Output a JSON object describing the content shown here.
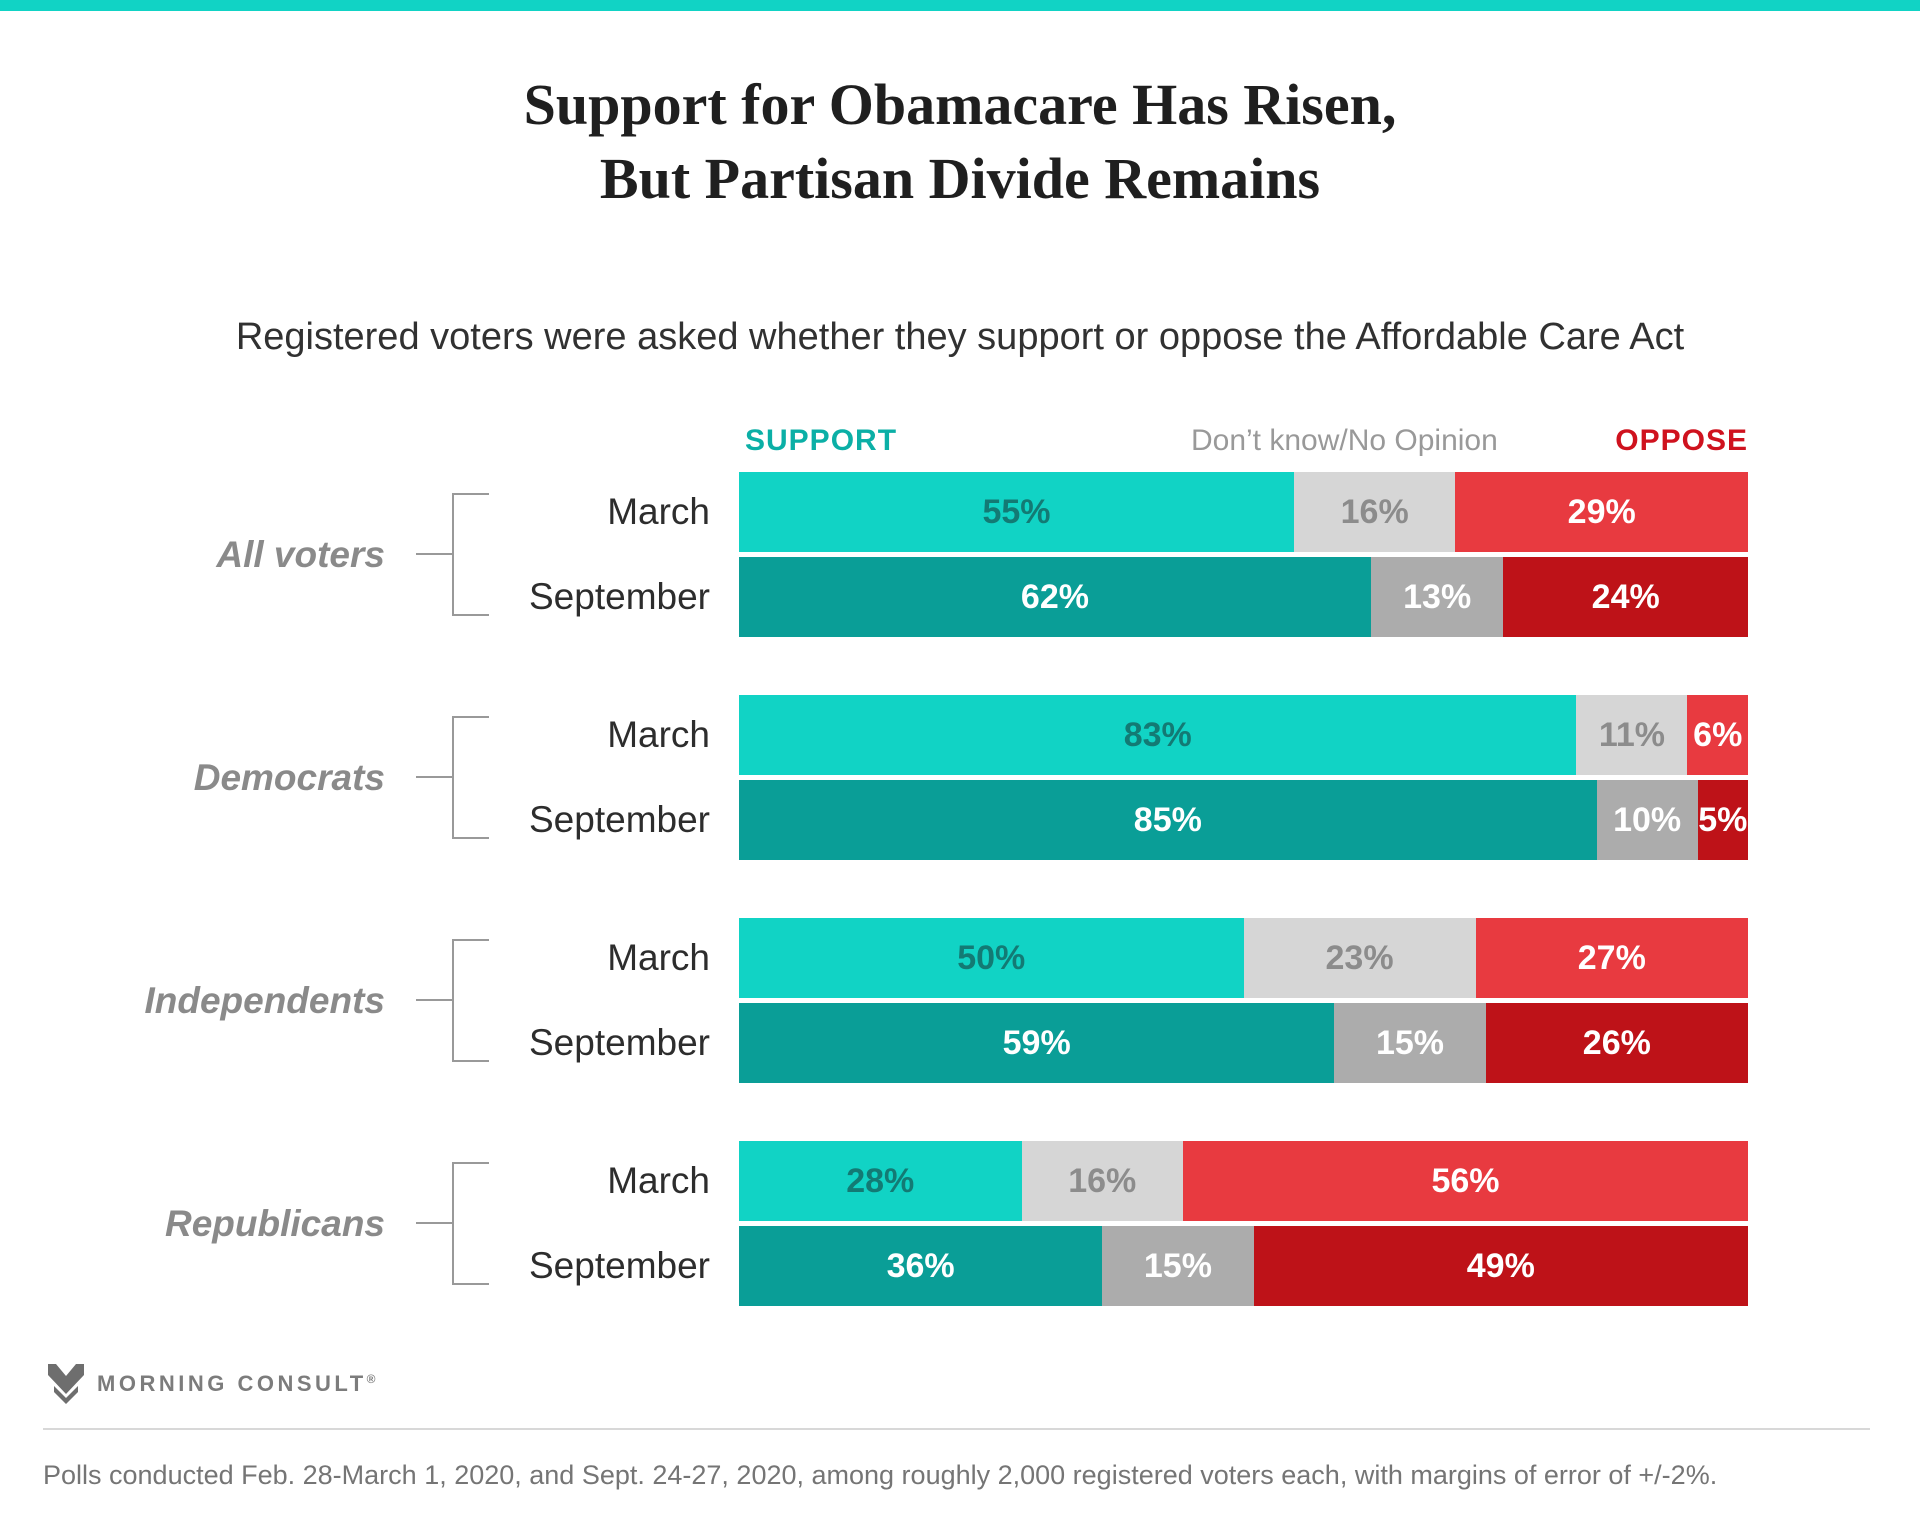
{
  "chart_data": {
    "type": "bar",
    "stacked": true,
    "orientation": "horizontal",
    "title": "Support for Obamacare Has Risen, But Partisan Divide Remains",
    "title_lines": [
      "Support for Obamacare Has Risen,",
      "But Partisan Divide Remains"
    ],
    "subtitle": "Registered voters were asked whether they support or oppose the Affordable Care Act",
    "unit": "%",
    "xlim": [
      0,
      100
    ],
    "legend_position": "top",
    "value_labels": "inside",
    "categories": [
      "Support",
      "Don’t know/No Opinion",
      "Oppose"
    ],
    "series_labels": {
      "support": "SUPPORT",
      "dont_know": "Don’t know/No Opinion",
      "oppose": "OPPOSE"
    },
    "groups": [
      {
        "label": "All voters",
        "rows": [
          {
            "period": "March",
            "values": [
              55,
              16,
              29
            ]
          },
          {
            "period": "September",
            "values": [
              62,
              13,
              24
            ]
          }
        ]
      },
      {
        "label": "Democrats",
        "rows": [
          {
            "period": "March",
            "values": [
              83,
              11,
              6
            ]
          },
          {
            "period": "September",
            "values": [
              85,
              10,
              5
            ]
          }
        ]
      },
      {
        "label": "Independents",
        "rows": [
          {
            "period": "March",
            "values": [
              50,
              23,
              27
            ]
          },
          {
            "period": "September",
            "values": [
              59,
              15,
              26
            ]
          }
        ]
      },
      {
        "label": "Republicans",
        "rows": [
          {
            "period": "March",
            "values": [
              28,
              16,
              56
            ]
          },
          {
            "period": "September",
            "values": [
              36,
              15,
              49
            ]
          }
        ]
      }
    ]
  },
  "palette": {
    "accent_bar": "#11d3c5",
    "march": {
      "support": "#11d3c5",
      "dont_know": "#d6d6d6",
      "oppose": "#e83a40",
      "text": {
        "support": "#137a74",
        "dont_know": "#8c8c8c",
        "oppose": "#ffffff"
      }
    },
    "september": {
      "support": "#0a9e97",
      "dont_know": "#acacac",
      "oppose": "#be1218",
      "text": {
        "support": "#ffffff",
        "dont_know": "#ffffff",
        "oppose": "#ffffff"
      }
    },
    "legend": {
      "support": "#0bafa6",
      "dont_know": "#999999",
      "oppose": "#cf121e"
    }
  },
  "footer": {
    "brand": "MORNING CONSULT",
    "registered_mark": "®",
    "note": "Polls conducted Feb. 28-March 1, 2020, and Sept. 24-27, 2020, among roughly 2,000 registered voters each, with margins of error of +/-2%."
  }
}
